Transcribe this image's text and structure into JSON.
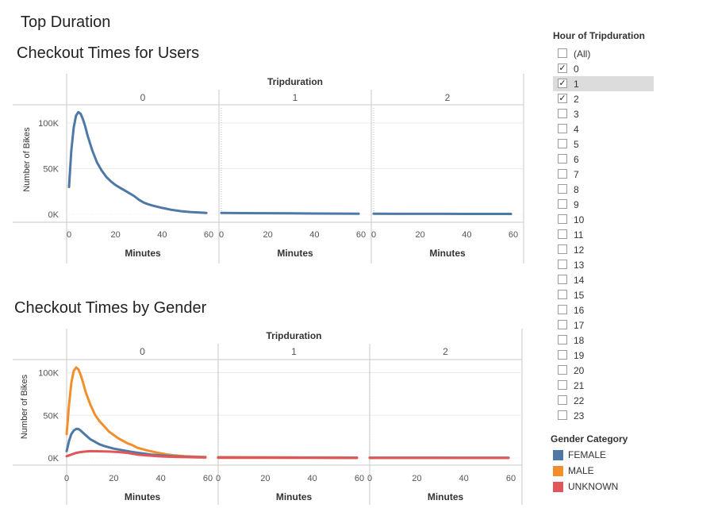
{
  "dashboard": {
    "title": "Top Duration",
    "colors": {
      "FEMALE": "#4e79a7",
      "MALE": "#f28e2b",
      "UNKNOWN": "#e15759",
      "axis": "#c8c8c8",
      "grid": "#ebebeb"
    }
  },
  "filter": {
    "title": "Hour of Tripduration",
    "items": [
      {
        "label": "(All)",
        "checked": false
      },
      {
        "label": "0",
        "checked": true
      },
      {
        "label": "1",
        "checked": true,
        "highlighted": true
      },
      {
        "label": "2",
        "checked": true
      },
      {
        "label": "3",
        "checked": false
      },
      {
        "label": "4",
        "checked": false
      },
      {
        "label": "5",
        "checked": false
      },
      {
        "label": "6",
        "checked": false
      },
      {
        "label": "7",
        "checked": false
      },
      {
        "label": "8",
        "checked": false
      },
      {
        "label": "9",
        "checked": false
      },
      {
        "label": "10",
        "checked": false
      },
      {
        "label": "11",
        "checked": false
      },
      {
        "label": "12",
        "checked": false
      },
      {
        "label": "13",
        "checked": false
      },
      {
        "label": "14",
        "checked": false
      },
      {
        "label": "15",
        "checked": false
      },
      {
        "label": "16",
        "checked": false
      },
      {
        "label": "17",
        "checked": false
      },
      {
        "label": "18",
        "checked": false
      },
      {
        "label": "19",
        "checked": false
      },
      {
        "label": "20",
        "checked": false
      },
      {
        "label": "21",
        "checked": false
      },
      {
        "label": "22",
        "checked": false
      },
      {
        "label": "23",
        "checked": false
      }
    ]
  },
  "legend": {
    "title": "Gender Category",
    "items": [
      {
        "label": "FEMALE",
        "color": "#4e79a7"
      },
      {
        "label": "MALE",
        "color": "#f28e2b"
      },
      {
        "label": "UNKNOWN",
        "color": "#e15759"
      }
    ]
  },
  "chart_data": [
    {
      "type": "line",
      "title": "Checkout Times for Users",
      "column_header": "Tripduration",
      "panels": [
        "0",
        "1",
        "2"
      ],
      "xlabel": "Minutes",
      "ylabel": "Number of Bikes",
      "xlim": [
        0,
        60
      ],
      "ylim": [
        0,
        120000
      ],
      "x_ticks": [
        "0",
        "20",
        "40",
        "60"
      ],
      "y_ticks": [
        {
          "value": 0,
          "label": "0K"
        },
        {
          "value": 50000,
          "label": "50K"
        },
        {
          "value": 100000,
          "label": "100K"
        }
      ],
      "series": [
        {
          "color": "#4e79a7",
          "panels": [
            {
              "x": [
                0,
                1,
                2,
                3,
                4,
                5,
                6,
                7,
                8,
                10,
                12,
                14,
                16,
                18,
                20,
                22,
                24,
                26,
                28,
                30,
                32,
                34,
                36,
                40,
                44,
                48,
                52,
                56,
                59
              ],
              "y": [
                30000,
                70000,
                95000,
                108000,
                112000,
                110000,
                104000,
                96000,
                86000,
                70000,
                57000,
                48000,
                41000,
                36000,
                32000,
                29000,
                26000,
                23000,
                20000,
                16000,
                13000,
                11000,
                9500,
                7000,
                5000,
                3500,
                2500,
                2000,
                1500
              ]
            },
            {
              "x": [
                0,
                10,
                20,
                30,
                40,
                50,
                59
              ],
              "y": [
                1500,
                1300,
                1200,
                1000,
                900,
                800,
                700
              ]
            },
            {
              "x": [
                0,
                10,
                20,
                30,
                40,
                50,
                59
              ],
              "y": [
                600,
                550,
                500,
                500,
                450,
                450,
                400
              ]
            }
          ]
        }
      ]
    },
    {
      "type": "line",
      "title": "Checkout Times by Gender",
      "column_header": "Tripduration",
      "panels": [
        "0",
        "1",
        "2"
      ],
      "xlabel": "Minutes",
      "ylabel": "Number of Bikes",
      "xlim": [
        0,
        60
      ],
      "ylim": [
        0,
        120000
      ],
      "x_ticks": [
        "0",
        "20",
        "40",
        "60"
      ],
      "y_ticks": [
        {
          "value": 0,
          "label": "0K"
        },
        {
          "value": 50000,
          "label": "50K"
        },
        {
          "value": 100000,
          "label": "100K"
        }
      ],
      "series": [
        {
          "name": "MALE",
          "color": "#f28e2b",
          "panels": [
            {
              "x": [
                0,
                1,
                2,
                3,
                4,
                5,
                6,
                7,
                8,
                10,
                12,
                14,
                16,
                18,
                20,
                22,
                24,
                26,
                28,
                30,
                34,
                38,
                42,
                46,
                50,
                55,
                59
              ],
              "y": [
                28000,
                62000,
                88000,
                102000,
                106000,
                104000,
                97000,
                88000,
                78000,
                63000,
                51000,
                43000,
                37000,
                31000,
                27000,
                23000,
                20000,
                17000,
                15000,
                12000,
                9000,
                6500,
                4500,
                3000,
                2000,
                1500,
                1200
              ]
            },
            {
              "x": [
                0,
                10,
                20,
                30,
                40,
                50,
                59
              ],
              "y": [
                1000,
                900,
                800,
                700,
                600,
                600,
                500
              ]
            },
            {
              "x": [
                0,
                10,
                20,
                30,
                40,
                50,
                59
              ],
              "y": [
                400,
                400,
                350,
                350,
                300,
                300,
                300
              ]
            }
          ]
        },
        {
          "name": "FEMALE",
          "color": "#4e79a7",
          "panels": [
            {
              "x": [
                0,
                1,
                2,
                3,
                4,
                5,
                6,
                8,
                10,
                12,
                14,
                16,
                20,
                24,
                28,
                32,
                36,
                40,
                45,
                50,
                55,
                59
              ],
              "y": [
                8000,
                20000,
                28000,
                32000,
                34000,
                34000,
                32000,
                27000,
                22000,
                19000,
                16000,
                14000,
                11000,
                9000,
                7000,
                5500,
                4000,
                3000,
                2000,
                1500,
                1000,
                800
              ]
            },
            {
              "x": [
                0,
                10,
                20,
                30,
                40,
                50,
                59
              ],
              "y": [
                600,
                500,
                450,
                400,
                350,
                300,
                300
              ]
            },
            {
              "x": [
                0,
                10,
                20,
                30,
                40,
                50,
                59
              ],
              "y": [
                300,
                300,
                250,
                250,
                200,
                200,
                200
              ]
            }
          ]
        },
        {
          "name": "UNKNOWN",
          "color": "#e15759",
          "panels": [
            {
              "x": [
                0,
                2,
                4,
                6,
                8,
                10,
                14,
                18,
                22,
                26,
                30,
                34,
                38,
                42,
                48,
                54,
                59
              ],
              "y": [
                2000,
                4000,
                6000,
                7000,
                7500,
                8000,
                7800,
                7500,
                7000,
                6000,
                4000,
                3000,
                2200,
                1600,
                1100,
                800,
                600
              ]
            },
            {
              "x": [
                0,
                20,
                40,
                59
              ],
              "y": [
                200,
                150,
                150,
                100
              ]
            },
            {
              "x": [
                0,
                20,
                40,
                59
              ],
              "y": [
                100,
                100,
                80,
                80
              ]
            }
          ]
        }
      ]
    }
  ]
}
